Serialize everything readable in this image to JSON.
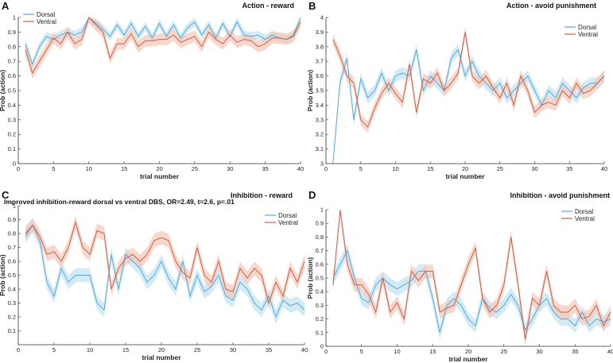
{
  "colors": {
    "dorsal_line": "#5aa9d6",
    "dorsal_band": "#bfe2f3",
    "ventral_line": "#c9604a",
    "ventral_band": "#f3c8b8",
    "axis": "#333333"
  },
  "chart_data": [
    {
      "type": "line",
      "panel_label": "A",
      "title": "Action - reward",
      "xlabel": "trial number",
      "ylabel": "Prob (action)",
      "xlim": [
        0,
        40
      ],
      "ylim": [
        0,
        1
      ],
      "xticks": [
        0,
        5,
        10,
        15,
        20,
        25,
        30,
        35,
        40
      ],
      "yticks": [
        0,
        0.1,
        0.2,
        0.3,
        0.4,
        0.5,
        0.6,
        0.7,
        0.8,
        0.9,
        1
      ],
      "ytick_labels": [
        "0",
        "0.1",
        "0.2",
        "0.3",
        "0.4",
        "0.5",
        "0.6",
        "0.7",
        "0.8",
        "0.9",
        "1"
      ],
      "legend": "top-left",
      "annotation": "",
      "x": [
        1,
        2,
        3,
        4,
        5,
        6,
        7,
        8,
        9,
        10,
        11,
        12,
        13,
        14,
        15,
        16,
        17,
        18,
        19,
        20,
        21,
        22,
        23,
        24,
        25,
        26,
        27,
        28,
        29,
        30,
        31,
        32,
        33,
        34,
        35,
        36,
        37,
        38,
        39,
        40
      ],
      "series": [
        {
          "name": "Dorsal",
          "band": 0.03,
          "values": [
            0.82,
            0.68,
            0.8,
            0.87,
            0.85,
            0.88,
            0.9,
            0.88,
            0.9,
            1.0,
            0.96,
            0.92,
            0.87,
            0.95,
            0.88,
            0.96,
            0.87,
            0.94,
            0.86,
            0.96,
            0.87,
            0.95,
            0.86,
            0.93,
            0.97,
            0.88,
            0.95,
            0.86,
            0.96,
            0.87,
            0.97,
            0.88,
            0.87,
            0.88,
            0.85,
            0.88,
            0.86,
            0.85,
            0.88,
            1.0
          ]
        },
        {
          "name": "Ventral",
          "band": 0.04,
          "values": [
            0.78,
            0.62,
            0.7,
            0.78,
            0.86,
            0.82,
            0.9,
            0.82,
            0.85,
            1.0,
            0.95,
            0.9,
            0.72,
            0.82,
            0.82,
            0.89,
            0.8,
            0.84,
            0.84,
            0.85,
            0.85,
            0.88,
            0.83,
            0.85,
            0.87,
            0.8,
            0.9,
            0.85,
            0.82,
            0.88,
            0.83,
            0.85,
            0.84,
            0.8,
            0.82,
            0.86,
            0.86,
            0.85,
            0.87,
            0.97
          ]
        }
      ]
    },
    {
      "type": "line",
      "panel_label": "B",
      "title": "Action - avoid punishment",
      "xlabel": "trial number",
      "ylabel": "Prob (action)",
      "xlim": [
        0,
        40
      ],
      "ylim": [
        3,
        4
      ],
      "xticks": [
        0,
        5,
        10,
        15,
        20,
        25,
        30,
        35,
        40
      ],
      "yticks": [
        3,
        3.1,
        3.2,
        3.3,
        3.4,
        3.5,
        3.6,
        3.7,
        3.8,
        3.9,
        4
      ],
      "ytick_labels": [
        "3",
        "3.1",
        "3.2",
        "3.3",
        "3.4",
        "3.5",
        "3.6",
        "3.7",
        "3.8",
        "3.9",
        "4"
      ],
      "legend": "top-right",
      "annotation": "",
      "x": [
        1,
        2,
        3,
        4,
        5,
        6,
        7,
        8,
        9,
        10,
        11,
        12,
        13,
        14,
        15,
        16,
        17,
        18,
        19,
        20,
        21,
        22,
        23,
        24,
        25,
        26,
        27,
        28,
        29,
        30,
        31,
        32,
        33,
        34,
        35,
        36,
        37,
        38,
        39,
        40
      ],
      "series": [
        {
          "name": "Dorsal",
          "band": 0.04,
          "values": [
            3.0,
            3.55,
            3.72,
            3.3,
            3.58,
            3.45,
            3.5,
            3.62,
            3.5,
            3.6,
            3.62,
            3.6,
            3.78,
            3.5,
            3.6,
            3.55,
            3.5,
            3.72,
            3.78,
            3.6,
            3.7,
            3.6,
            3.55,
            3.5,
            3.55,
            3.45,
            3.5,
            3.55,
            3.6,
            3.5,
            3.4,
            3.5,
            3.45,
            3.55,
            3.5,
            3.45,
            3.52,
            3.55,
            3.55,
            3.6
          ]
        },
        {
          "name": "Ventral",
          "band": 0.04,
          "values": [
            3.85,
            3.74,
            3.6,
            3.55,
            3.3,
            3.25,
            3.38,
            3.48,
            3.55,
            3.48,
            3.42,
            3.68,
            3.35,
            3.58,
            3.55,
            3.62,
            3.5,
            3.55,
            3.62,
            3.9,
            3.6,
            3.55,
            3.6,
            3.52,
            3.45,
            3.55,
            3.4,
            3.6,
            3.5,
            3.35,
            3.4,
            3.42,
            3.4,
            3.5,
            3.45,
            3.55,
            3.48,
            3.5,
            3.55,
            3.6
          ]
        }
      ]
    },
    {
      "type": "line",
      "panel_label": "C",
      "title": "Inhibition - reward",
      "xlabel": "trial number",
      "ylabel": "Prob (action)",
      "xlim": [
        0,
        40
      ],
      "ylim": [
        0,
        1
      ],
      "xticks": [
        0,
        5,
        10,
        15,
        20,
        25,
        30,
        35,
        40
      ],
      "yticks": [
        0.1,
        0.2,
        0.3,
        0.4,
        0.5,
        0.6,
        0.7,
        0.8,
        0.9,
        1
      ],
      "ytick_labels": [
        "0.1",
        "0.2",
        "0.3",
        "0.4",
        "0.5",
        "0.6",
        "0.7",
        "0.8",
        "0.9",
        "1"
      ],
      "legend": "top-right",
      "annotation": "Improved inhibition-reward dorsal vs ventral DBS, OR=2.49, t=2.6, p=.01",
      "x": [
        1,
        2,
        3,
        4,
        5,
        6,
        7,
        8,
        9,
        10,
        11,
        12,
        13,
        14,
        15,
        16,
        17,
        18,
        19,
        20,
        21,
        22,
        23,
        24,
        25,
        26,
        27,
        28,
        29,
        30,
        31,
        32,
        33,
        34,
        35,
        36,
        37,
        38,
        39,
        40
      ],
      "series": [
        {
          "name": "Dorsal",
          "band": 0.05,
          "values": [
            0.78,
            0.86,
            0.75,
            0.45,
            0.35,
            0.55,
            0.45,
            0.5,
            0.5,
            0.5,
            0.3,
            0.25,
            0.65,
            0.4,
            0.65,
            0.6,
            0.55,
            0.45,
            0.5,
            0.6,
            0.48,
            0.4,
            0.6,
            0.35,
            0.5,
            0.38,
            0.42,
            0.5,
            0.35,
            0.32,
            0.45,
            0.4,
            0.3,
            0.25,
            0.35,
            0.2,
            0.32,
            0.28,
            0.3,
            0.25
          ]
        },
        {
          "name": "Ventral",
          "band": 0.05,
          "values": [
            0.8,
            0.86,
            0.78,
            0.65,
            0.67,
            0.6,
            0.7,
            0.88,
            0.7,
            0.65,
            0.82,
            0.8,
            0.4,
            0.55,
            0.62,
            0.65,
            0.6,
            0.65,
            0.75,
            0.77,
            0.75,
            0.6,
            0.52,
            0.48,
            0.7,
            0.5,
            0.45,
            0.6,
            0.4,
            0.38,
            0.55,
            0.48,
            0.55,
            0.5,
            0.3,
            0.45,
            0.35,
            0.55,
            0.45,
            0.6
          ]
        }
      ]
    },
    {
      "type": "line",
      "panel_label": "D",
      "title": "Inhibition - avoid punishment",
      "xlabel": "trial number",
      "ylabel": "Prob (action)",
      "xlim": [
        0,
        40
      ],
      "ylim": [
        0,
        1
      ],
      "xticks": [
        0,
        5,
        10,
        15,
        20,
        25,
        30,
        35,
        40
      ],
      "yticks": [
        0,
        0.1,
        0.2,
        0.3,
        0.4,
        0.5,
        0.6,
        0.7,
        0.8,
        0.9,
        1
      ],
      "ytick_labels": [
        "0",
        "0.1",
        "0.2",
        "0.3",
        "0.4",
        "0.5",
        "0.6",
        "0.7",
        "0.8",
        "0.9",
        "1"
      ],
      "legend": "top-right",
      "annotation": "",
      "x": [
        1,
        2,
        3,
        4,
        5,
        6,
        7,
        8,
        9,
        10,
        11,
        12,
        13,
        14,
        15,
        16,
        17,
        18,
        19,
        20,
        21,
        22,
        23,
        24,
        25,
        26,
        27,
        28,
        29,
        30,
        31,
        32,
        33,
        34,
        35,
        36,
        37,
        38,
        39,
        40
      ],
      "series": [
        {
          "name": "Dorsal",
          "band": 0.05,
          "values": [
            0.5,
            0.6,
            0.7,
            0.5,
            0.35,
            0.32,
            0.45,
            0.5,
            0.45,
            0.42,
            0.45,
            0.48,
            0.55,
            0.55,
            0.35,
            0.1,
            0.3,
            0.35,
            0.3,
            0.2,
            0.15,
            0.35,
            0.28,
            0.25,
            0.3,
            0.38,
            0.3,
            0.12,
            0.2,
            0.3,
            0.35,
            0.25,
            0.2,
            0.2,
            0.15,
            0.25,
            0.15,
            0.2,
            0.18,
            0.2
          ]
        },
        {
          "name": "Ventral",
          "band": 0.05,
          "values": [
            0.45,
            1.0,
            0.6,
            0.45,
            0.45,
            0.38,
            0.25,
            0.5,
            0.25,
            0.32,
            0.2,
            0.55,
            0.48,
            0.55,
            0.55,
            0.25,
            0.28,
            0.3,
            0.45,
            0.6,
            0.72,
            0.35,
            0.25,
            0.3,
            0.45,
            0.8,
            0.45,
            0.05,
            0.35,
            0.3,
            0.55,
            0.3,
            0.25,
            0.25,
            0.3,
            0.2,
            0.22,
            0.3,
            0.15,
            0.25
          ]
        }
      ]
    }
  ]
}
